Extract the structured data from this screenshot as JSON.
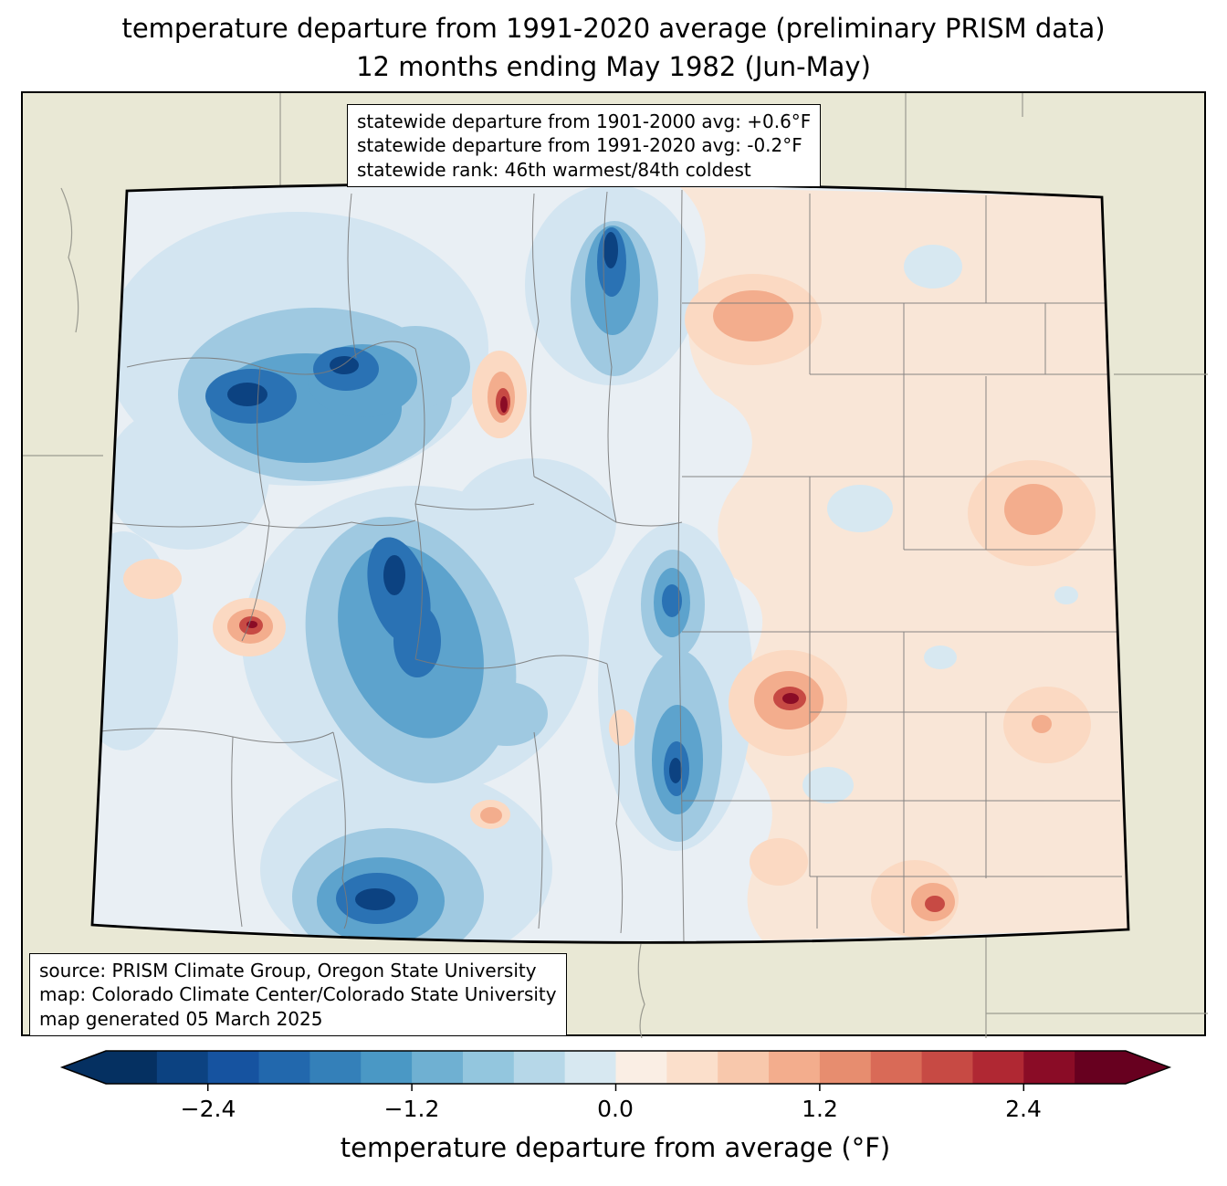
{
  "title": {
    "line1": "temperature departure from 1991-2020 average (preliminary PRISM data)",
    "line2": "12 months ending May 1982 (Jun-May)"
  },
  "stats_box": {
    "lines": [
      "statewide departure from 1901-2000 avg: +0.6°F",
      "statewide departure from 1991-2020 avg: -0.2°F",
      "statewide rank: 46th warmest/84th coldest"
    ]
  },
  "source_box": {
    "lines": [
      "source: PRISM Climate Group, Oregon State University",
      "map: Colorado Climate Center/Colorado State University",
      "map generated 05 March 2025"
    ]
  },
  "colorbar": {
    "label": "temperature departure from average (°F)",
    "ticks": [
      "−2.4",
      "−1.2",
      "0.0",
      "1.2",
      "2.4"
    ],
    "min": -3.0,
    "max": 3.0,
    "step": 0.3,
    "under_color": "#053061",
    "over_color": "#67001f",
    "colors": [
      "#053061",
      "#0c4281",
      "#1653a0",
      "#2268ad",
      "#3480b9",
      "#4a98c5",
      "#6fb0d2",
      "#93c6de",
      "#b6d7e8",
      "#d7e8f1",
      "#faeee4",
      "#fbdfcb",
      "#f8c8ac",
      "#f3ad8d",
      "#e78d6f",
      "#d96a57",
      "#c74a44",
      "#b02833",
      "#8a0c26",
      "#67001f"
    ]
  },
  "map": {
    "region": "Colorado",
    "background_color": "#e9e8d5",
    "state_border_color": "#000000",
    "county_line_color": "#7a7a7a"
  }
}
